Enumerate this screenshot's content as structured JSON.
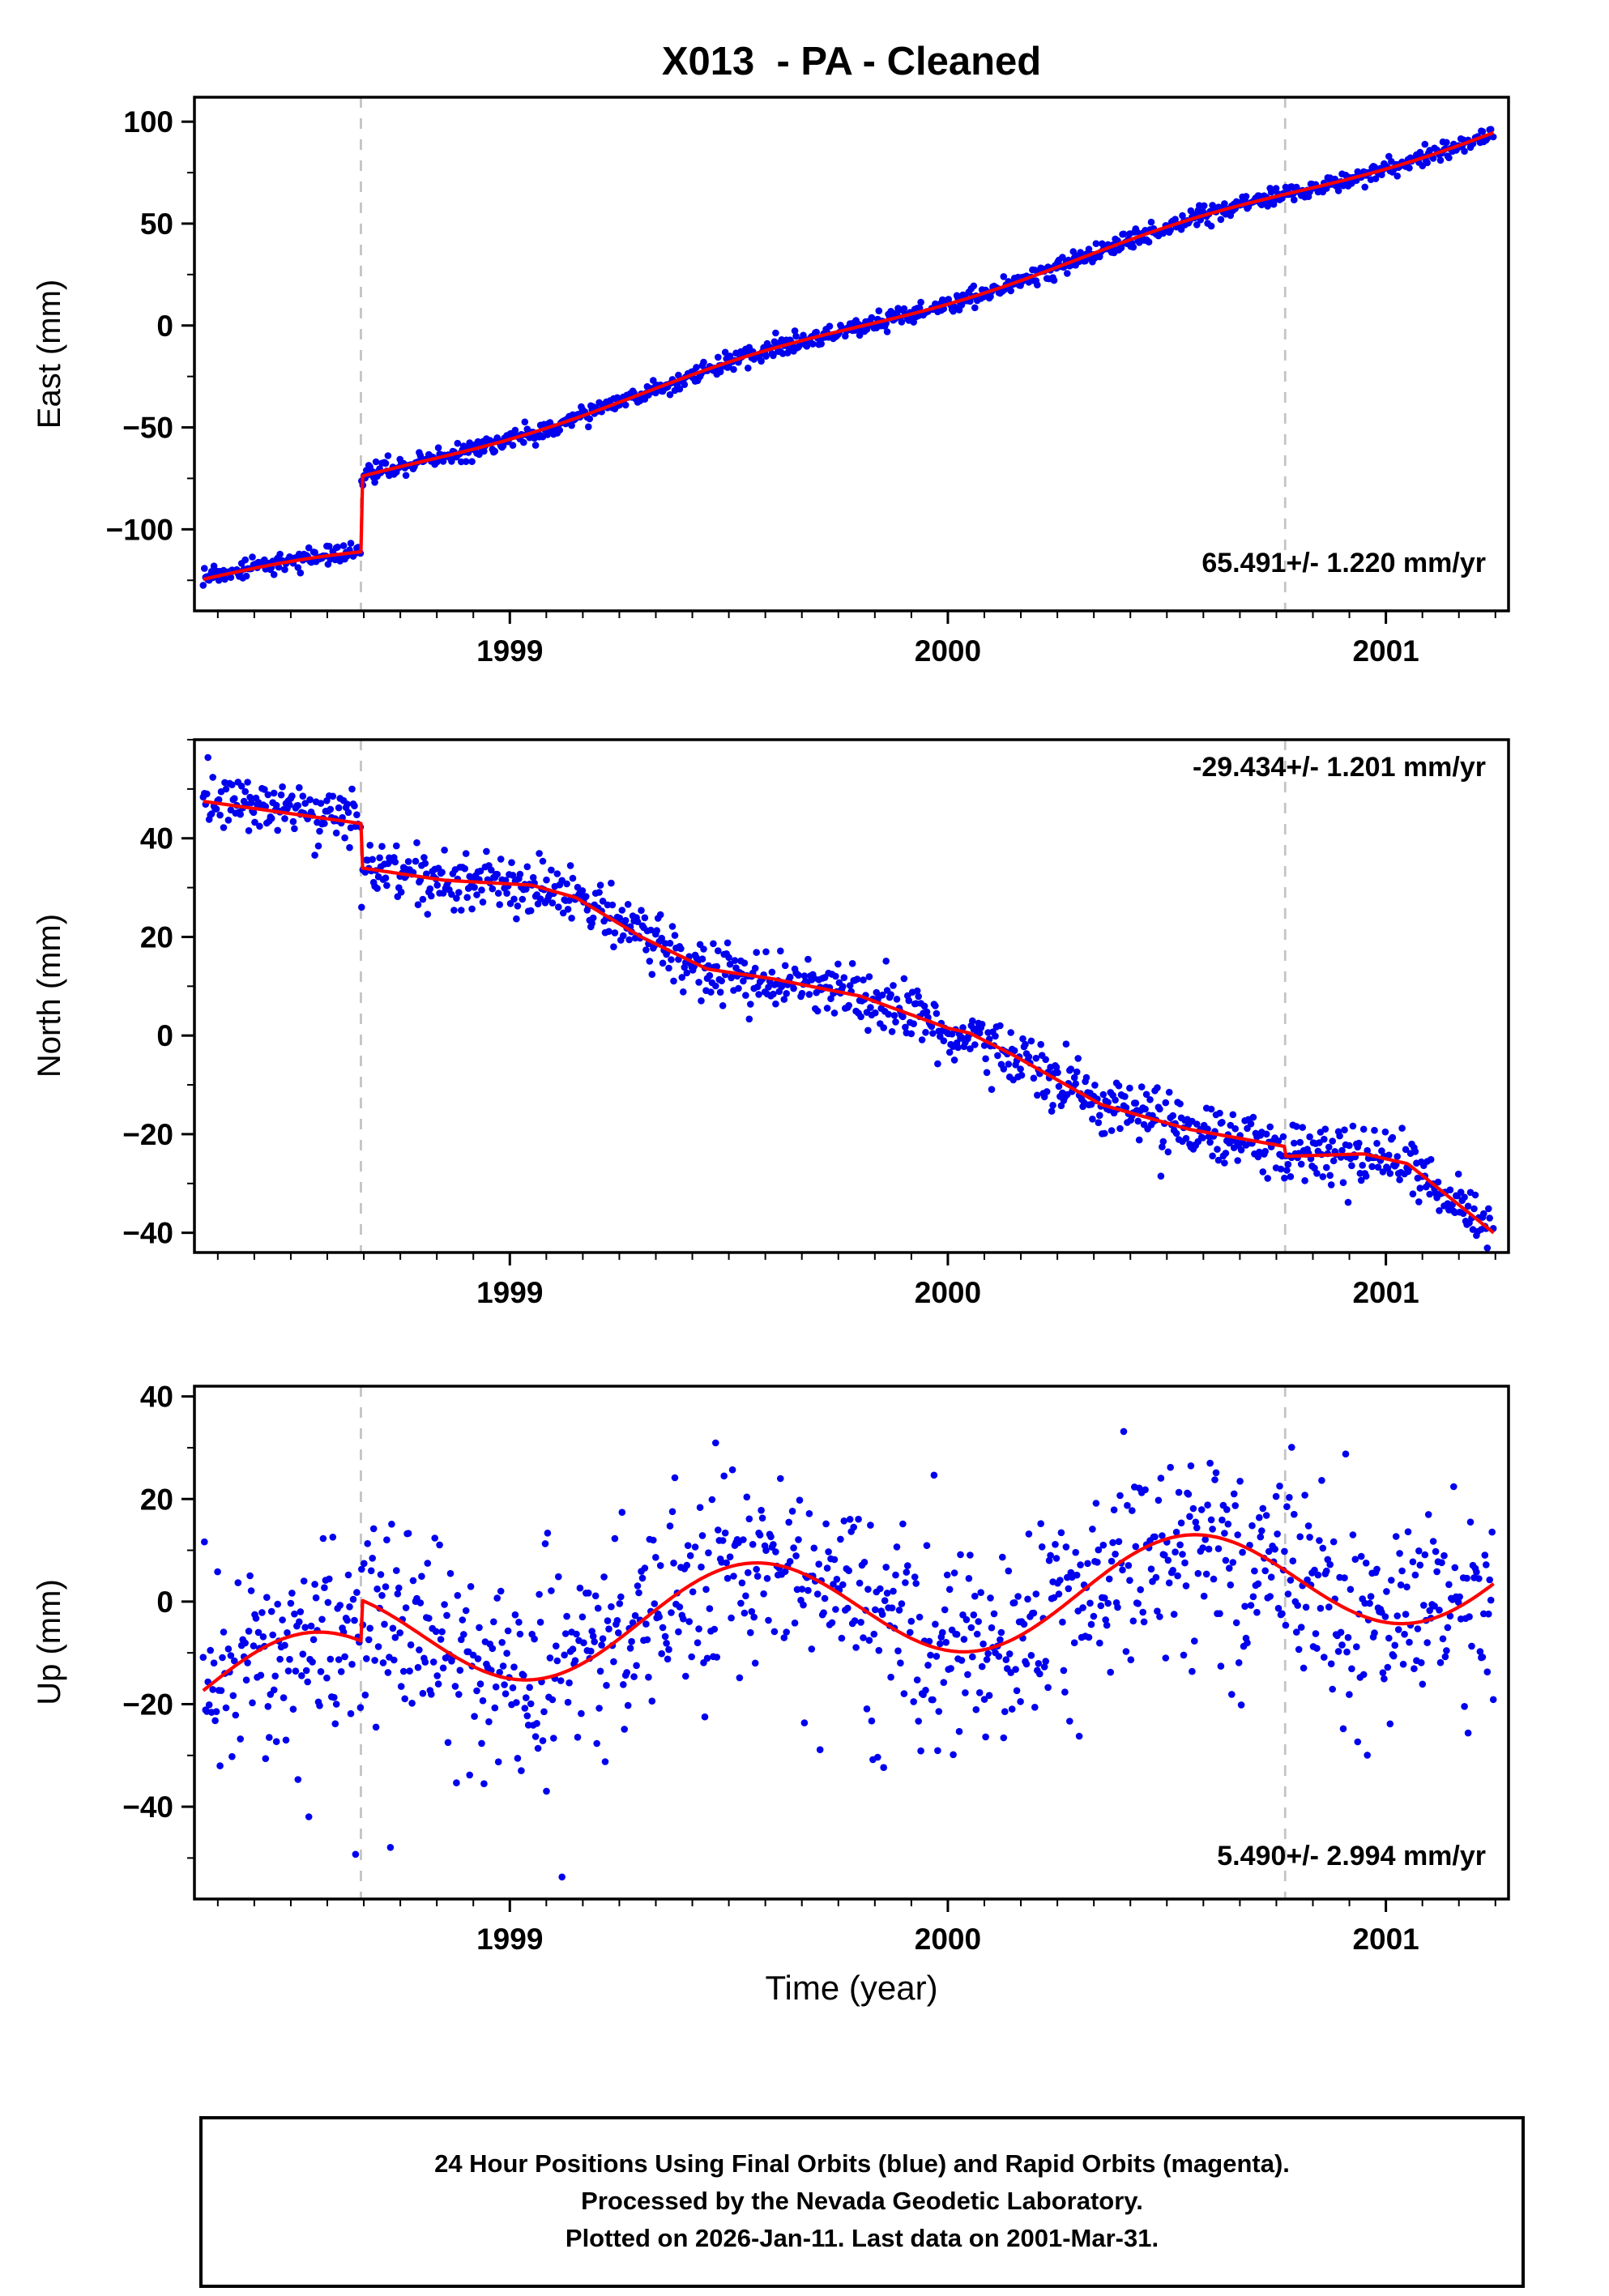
{
  "title": "X013  - PA - Cleaned",
  "xlabel": "Time (year)",
  "footer": {
    "line1": "24 Hour Positions Using Final Orbits (blue) and Rapid Orbits (magenta).",
    "line2": "Processed by the Nevada Geodetic Laboratory.",
    "line3": "Plotted on 2026-Jan-11. Last data on 2001-Mar-31."
  },
  "colors": {
    "dots": "#0000ee",
    "model": "#ff0000",
    "events": "#c4c4c4",
    "frame": "#000000",
    "background": "#ffffff"
  },
  "chart_data": {
    "type": "scatter",
    "title": "X013  - PA - Cleaned",
    "x_range": [
      1998.28,
      2001.28
    ],
    "x_ticks": [
      1999,
      2000,
      2001
    ],
    "x_tick_labels": [
      "1999",
      "2000",
      "2001"
    ],
    "x_minor_step": 0.0833333,
    "event_lines_x": [
      1998.66,
      2000.77
    ],
    "time_start": 1998.3,
    "time_end": 2001.246,
    "samples_per_year": 365,
    "dropout_prob": 0.03,
    "seed": 20260111,
    "panels": [
      {
        "id": "east",
        "ylabel": "East (mm)",
        "rate_label": "65.491+/- 1.220 mm/yr",
        "rate_label_pos": "bottom-right",
        "y_range": [
          -140,
          112
        ],
        "y_ticks": [
          -100,
          -50,
          0,
          50,
          100
        ],
        "y_tick_labels": [
          "−100",
          "−50",
          "0",
          "50",
          "100"
        ],
        "y_minor_step": 25,
        "noise_sigma": 2.3,
        "model": {
          "kind": "linear-step",
          "pre": {
            "t0": 1998.3,
            "v0": -124.5,
            "slope": 32
          },
          "step_t": 1998.66,
          "post": {
            "t0": 1998.66,
            "v0": -76,
            "slope": 66.3
          },
          "seasonal_amp": 2.5,
          "seasonal_peak": 0.55
        }
      },
      {
        "id": "north",
        "ylabel": "North (mm)",
        "rate_label": "-29.434+/- 1.201 mm/yr",
        "rate_label_pos": "top-right",
        "y_range": [
          -44,
          60
        ],
        "y_ticks": [
          -40,
          -20,
          0,
          20,
          40
        ],
        "y_tick_labels": [
          "−40",
          "−20",
          "0",
          "20",
          "40"
        ],
        "y_minor_step": 10,
        "noise_sigma": 3.0,
        "model": {
          "kind": "piecewise",
          "points": [
            [
              1998.3,
              47.5
            ],
            [
              1998.66,
              43.0
            ],
            [
              1998.661,
              34.0
            ],
            [
              1998.85,
              31.5
            ],
            [
              1999.05,
              30.5
            ],
            [
              1999.15,
              28.0
            ],
            [
              1999.3,
              20.0
            ],
            [
              1999.45,
              13.5
            ],
            [
              1999.6,
              11.5
            ],
            [
              1999.8,
              8.0
            ],
            [
              2000.0,
              1.5
            ],
            [
              2000.05,
              0.5
            ],
            [
              2000.15,
              -4.0
            ],
            [
              2000.35,
              -14.0
            ],
            [
              2000.55,
              -19.0
            ],
            [
              2000.77,
              -22.5
            ],
            [
              2000.771,
              -24.5
            ],
            [
              2000.95,
              -24.0
            ],
            [
              2001.05,
              -26.0
            ],
            [
              2001.246,
              -40.0
            ]
          ]
        }
      },
      {
        "id": "up",
        "ylabel": "Up (mm)",
        "rate_label": "5.490+/- 2.994 mm/yr",
        "rate_label_pos": "bottom-right",
        "y_range": [
          -58,
          42
        ],
        "y_ticks": [
          -40,
          -20,
          0,
          20,
          40
        ],
        "y_tick_labels": [
          "−40",
          "−20",
          "0",
          "20",
          "40"
        ],
        "y_minor_step": 10,
        "noise_sigma": 9.5,
        "outlier_prob": 0.03,
        "outlier_extra": [
          -30,
          -8
        ],
        "model": {
          "kind": "seasonal-trend",
          "tref": 1999.55,
          "mean_at_tref": -2.5,
          "slope": 5.49,
          "amp": 10,
          "peak_phase": 0.55,
          "step_t": 1998.66,
          "pre_offset": -8
        }
      }
    ]
  }
}
